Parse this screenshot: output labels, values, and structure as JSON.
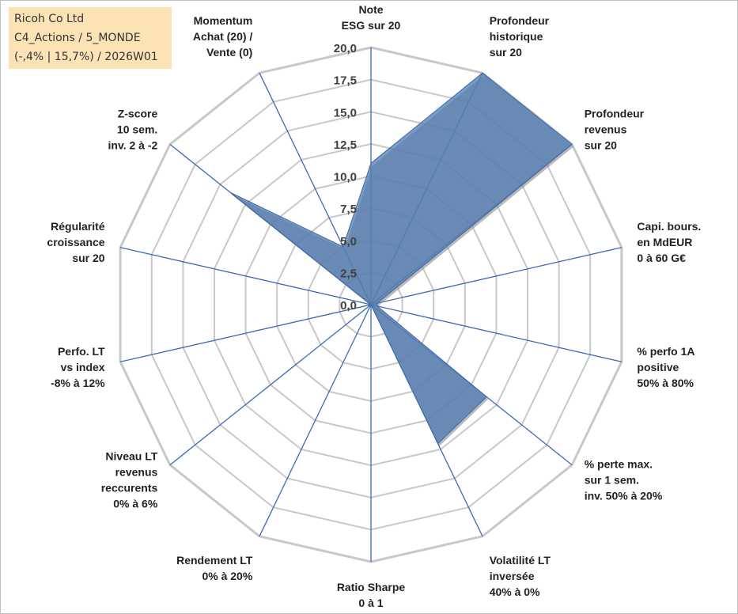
{
  "info_box": {
    "line1": "Ricoh Co Ltd",
    "line2": "C4_Actions / 5_MONDE",
    "line3": "(-,4% | 15,7%) / 2026W01"
  },
  "chart_data": {
    "type": "radar",
    "title": "",
    "rmin": 0,
    "rmax": 20,
    "tick_labels": [
      "0,0",
      "2,5",
      "5,0",
      "7,5",
      "10,0",
      "12,5",
      "15,0",
      "17,5",
      "20,0"
    ],
    "categories": [
      [
        "Note",
        "ESG sur 20"
      ],
      [
        "Profondeur",
        "historique",
        "sur 20"
      ],
      [
        "Profondeur",
        "revenus",
        "sur 20"
      ],
      [
        "Capi. bours.",
        "en MdEUR",
        "0 à 60 G€"
      ],
      [
        "% perfo 1A",
        "positive",
        "50% à 80%"
      ],
      [
        "% perte max.",
        "sur 1 sem.",
        "inv. 50% à 20%"
      ],
      [
        "Volatilité LT",
        "inversée",
        "40% à 0%"
      ],
      [
        "Ratio Sharpe",
        "0 à 1"
      ],
      [
        "Rendement LT",
        "0% à 20%"
      ],
      [
        "Niveau LT",
        "revenus",
        "reccurents",
        "0% à 6%"
      ],
      [
        "Perfo. LT",
        "vs index",
        "-8% à 12%"
      ],
      [
        "Régularité",
        "croissance",
        "sur 20"
      ],
      [
        "Z-score",
        "10 sem.",
        "inv. 2 à -2"
      ],
      [
        "Momentum",
        "Achat (20) /",
        "Vente (0)"
      ]
    ],
    "series": [
      {
        "values": [
          11,
          20,
          20,
          0.5,
          0.5,
          11.5,
          12,
          0,
          0,
          0,
          4.5,
          0,
          14,
          5
        ]
      }
    ],
    "colors": {
      "fill": "#4f7bb3",
      "edge": "#3a6aaa",
      "grid": "#c8c8c8",
      "spoke": "#3a6ab8"
    },
    "legend": "none"
  }
}
